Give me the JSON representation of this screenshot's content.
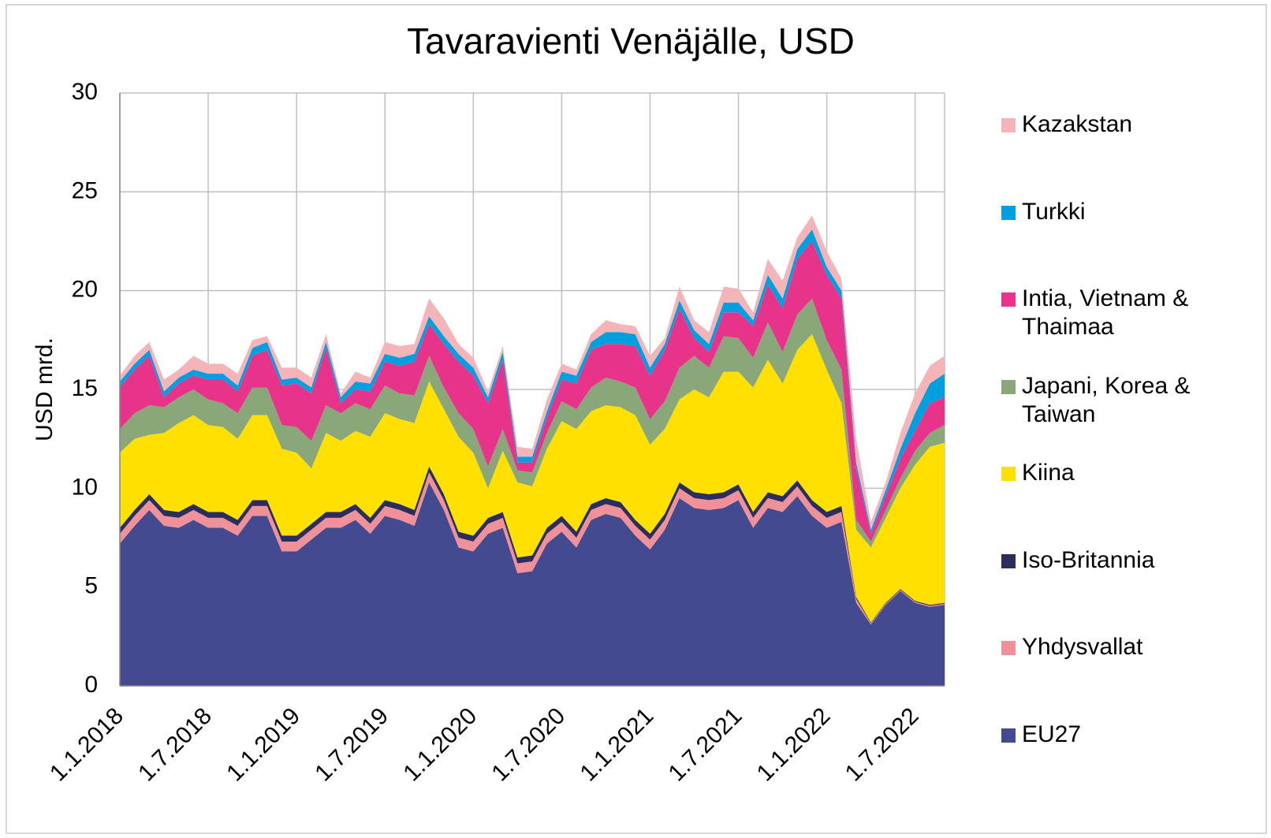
{
  "chart_data": {
    "type": "stacked_area",
    "title": "Tavaravienti Venäjälle, USD",
    "y_label": "USD mrd.",
    "categories": [
      "1.1.2018",
      null,
      null,
      null,
      null,
      null,
      "1.7.2018",
      null,
      null,
      null,
      null,
      null,
      "1.1.2019",
      null,
      null,
      null,
      null,
      null,
      "1.7.2019",
      null,
      null,
      null,
      null,
      null,
      "1.1.2020",
      null,
      null,
      null,
      null,
      null,
      "1.7.2020",
      null,
      null,
      null,
      null,
      null,
      "1.1.2021",
      null,
      null,
      null,
      null,
      null,
      "1.7.2021",
      null,
      null,
      null,
      null,
      null,
      "1.1.2022",
      null,
      null,
      null,
      null,
      null,
      "1.7.2022",
      null,
      null
    ],
    "ylim": [
      0,
      30
    ],
    "yticks": [
      0,
      5,
      10,
      15,
      20,
      25,
      30
    ],
    "grid": true,
    "series": [
      {
        "name": "EU27",
        "color": "#434a8f",
        "values": [
          7.2,
          8.1,
          8.9,
          8.1,
          8.0,
          8.4,
          8.0,
          8.0,
          7.6,
          8.6,
          8.6,
          6.8,
          6.8,
          7.4,
          8.0,
          8.0,
          8.4,
          7.7,
          8.6,
          8.4,
          8.1,
          10.3,
          8.9,
          7.0,
          6.8,
          7.7,
          8.0,
          5.7,
          5.8,
          7.2,
          7.8,
          7.0,
          8.4,
          8.7,
          8.5,
          7.6,
          6.9,
          7.9,
          9.5,
          9.0,
          8.9,
          9.0,
          9.4,
          8.0,
          9.0,
          8.8,
          9.6,
          8.6,
          8.0,
          8.3,
          4.2,
          3.1,
          4.1,
          4.8,
          4.2,
          4.0,
          4.1
        ]
      },
      {
        "name": "Yhdysvallat",
        "color": "#f0919a",
        "values": [
          0.5,
          0.5,
          0.5,
          0.5,
          0.5,
          0.5,
          0.5,
          0.5,
          0.5,
          0.5,
          0.5,
          0.5,
          0.5,
          0.5,
          0.5,
          0.5,
          0.5,
          0.5,
          0.5,
          0.5,
          0.5,
          0.5,
          0.5,
          0.5,
          0.5,
          0.5,
          0.5,
          0.5,
          0.5,
          0.5,
          0.5,
          0.5,
          0.5,
          0.5,
          0.5,
          0.5,
          0.5,
          0.5,
          0.5,
          0.5,
          0.5,
          0.5,
          0.5,
          0.5,
          0.5,
          0.5,
          0.5,
          0.5,
          0.5,
          0.5,
          0.2,
          0.05,
          0.05,
          0.05,
          0.05,
          0.05,
          0.05
        ]
      },
      {
        "name": "Iso-Britannia",
        "color": "#2b2e5c",
        "values": [
          0.3,
          0.3,
          0.3,
          0.3,
          0.3,
          0.3,
          0.3,
          0.3,
          0.3,
          0.3,
          0.3,
          0.3,
          0.3,
          0.3,
          0.3,
          0.3,
          0.3,
          0.3,
          0.3,
          0.3,
          0.3,
          0.3,
          0.3,
          0.3,
          0.3,
          0.3,
          0.3,
          0.3,
          0.3,
          0.3,
          0.3,
          0.3,
          0.3,
          0.3,
          0.3,
          0.3,
          0.3,
          0.3,
          0.3,
          0.3,
          0.3,
          0.3,
          0.3,
          0.3,
          0.3,
          0.3,
          0.3,
          0.3,
          0.3,
          0.3,
          0.1,
          0.05,
          0.05,
          0.05,
          0.05,
          0.05,
          0.05
        ]
      },
      {
        "name": "Kiina",
        "color": "#ffe000",
        "values": [
          3.8,
          3.6,
          3.0,
          3.9,
          4.5,
          4.5,
          4.4,
          4.3,
          4.1,
          4.3,
          4.3,
          4.4,
          4.2,
          2.8,
          4.0,
          3.6,
          3.7,
          4.1,
          4.4,
          4.3,
          4.4,
          4.3,
          4.3,
          4.8,
          4.2,
          1.5,
          3.1,
          3.8,
          3.5,
          4.0,
          4.8,
          5.2,
          4.7,
          4.7,
          4.8,
          5.3,
          4.5,
          4.3,
          4.2,
          5.2,
          4.9,
          6.1,
          5.7,
          6.3,
          6.7,
          5.7,
          6.6,
          8.4,
          7.2,
          5.2,
          3.4,
          3.8,
          4.3,
          5.1,
          6.9,
          8.0,
          8.1
        ]
      },
      {
        "name": "Japani, Korea & Taiwan",
        "color": "#8aa77a",
        "values": [
          1.2,
          1.3,
          1.5,
          1.3,
          1.3,
          1.3,
          1.3,
          1.2,
          1.3,
          1.4,
          1.4,
          1.2,
          1.3,
          1.4,
          1.4,
          1.4,
          1.4,
          1.4,
          1.4,
          1.3,
          1.4,
          1.3,
          1.1,
          1.2,
          1.2,
          1.1,
          1.1,
          0.6,
          0.7,
          0.8,
          1.0,
          1.0,
          1.2,
          1.4,
          1.3,
          1.4,
          1.3,
          1.4,
          1.6,
          1.7,
          1.5,
          1.8,
          1.7,
          1.5,
          1.9,
          1.6,
          1.8,
          1.8,
          1.5,
          1.7,
          0.5,
          0.3,
          0.4,
          0.5,
          0.7,
          0.7,
          0.9
        ]
      },
      {
        "name": "Intia, Vietnam & Thaimaa",
        "color": "#e8338a",
        "values": [
          2.1,
          2.2,
          2.5,
          0.5,
          0.7,
          0.7,
          1.0,
          1.2,
          1.1,
          1.6,
          1.9,
          2.0,
          2.2,
          2.4,
          2.9,
          0.5,
          0.7,
          0.9,
          1.2,
          1.4,
          1.7,
          1.6,
          2.2,
          2.6,
          2.7,
          3.2,
          3.5,
          0.4,
          0.5,
          0.8,
          1.1,
          1.3,
          1.9,
          1.7,
          1.9,
          2.1,
          2.2,
          2.6,
          3.0,
          0.9,
          0.8,
          1.2,
          1.3,
          1.6,
          1.9,
          2.2,
          2.8,
          2.9,
          3.3,
          3.6,
          2.6,
          0.4,
          0.7,
          1.0,
          1.0,
          1.5,
          1.4
        ]
      },
      {
        "name": "Turkki",
        "color": "#00a0e0",
        "values": [
          0.3,
          0.3,
          0.3,
          0.3,
          0.3,
          0.3,
          0.3,
          0.3,
          0.3,
          0.4,
          0.4,
          0.3,
          0.3,
          0.3,
          0.3,
          0.3,
          0.4,
          0.4,
          0.4,
          0.4,
          0.4,
          0.4,
          0.4,
          0.4,
          0.4,
          0.3,
          0.4,
          0.3,
          0.3,
          0.3,
          0.4,
          0.4,
          0.4,
          0.6,
          0.6,
          0.6,
          0.4,
          0.3,
          0.4,
          0.4,
          0.4,
          0.5,
          0.5,
          0.3,
          0.5,
          0.5,
          0.5,
          0.6,
          0.4,
          0.4,
          0.3,
          0.2,
          0.3,
          0.5,
          0.9,
          1.0,
          1.2
        ]
      },
      {
        "name": "Kazakstan",
        "color": "#f4b4b8",
        "values": [
          0.3,
          0.4,
          0.4,
          0.6,
          0.4,
          0.7,
          0.5,
          0.5,
          0.6,
          0.4,
          0.3,
          0.6,
          0.5,
          0.5,
          0.4,
          0.2,
          0.5,
          0.3,
          0.6,
          0.6,
          0.5,
          0.9,
          0.9,
          0.5,
          0.5,
          0.3,
          0.3,
          0.5,
          0.4,
          0.6,
          0.4,
          0.3,
          0.4,
          0.6,
          0.4,
          0.4,
          0.6,
          0.3,
          0.7,
          0.5,
          0.6,
          0.8,
          0.7,
          0.4,
          0.8,
          0.9,
          0.6,
          0.7,
          0.8,
          0.6,
          1.2,
          0.4,
          0.4,
          0.8,
          1.0,
          0.9,
          0.9
        ]
      }
    ]
  }
}
